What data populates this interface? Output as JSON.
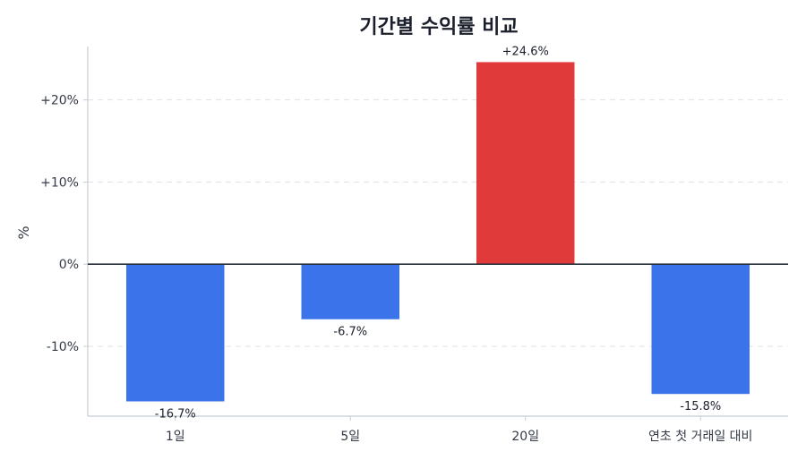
{
  "chart_data": {
    "type": "bar",
    "title": "기간별 수익률 비교",
    "xlabel": "",
    "ylabel": "%",
    "categories": [
      "1일",
      "5일",
      "20일",
      "연초 첫 거래일 대비"
    ],
    "values": [
      -16.7,
      -6.7,
      24.6,
      -15.8
    ],
    "data_labels": [
      "-16.7%",
      "-6.7%",
      "+24.6%",
      "-15.8%"
    ],
    "ylim": [
      -18.5,
      26.5
    ],
    "yticks": [
      -10,
      0,
      10,
      20
    ],
    "ytick_labels": [
      "-10%",
      "0%",
      "+10%",
      "+20%"
    ],
    "grid": "horizontal-dashed",
    "colors": {
      "positive": "#e03a3a",
      "negative": "#3a73ea",
      "zero_line": "#2b313b",
      "grid": "#dde1e6",
      "axis": "#c7ccd3"
    }
  }
}
